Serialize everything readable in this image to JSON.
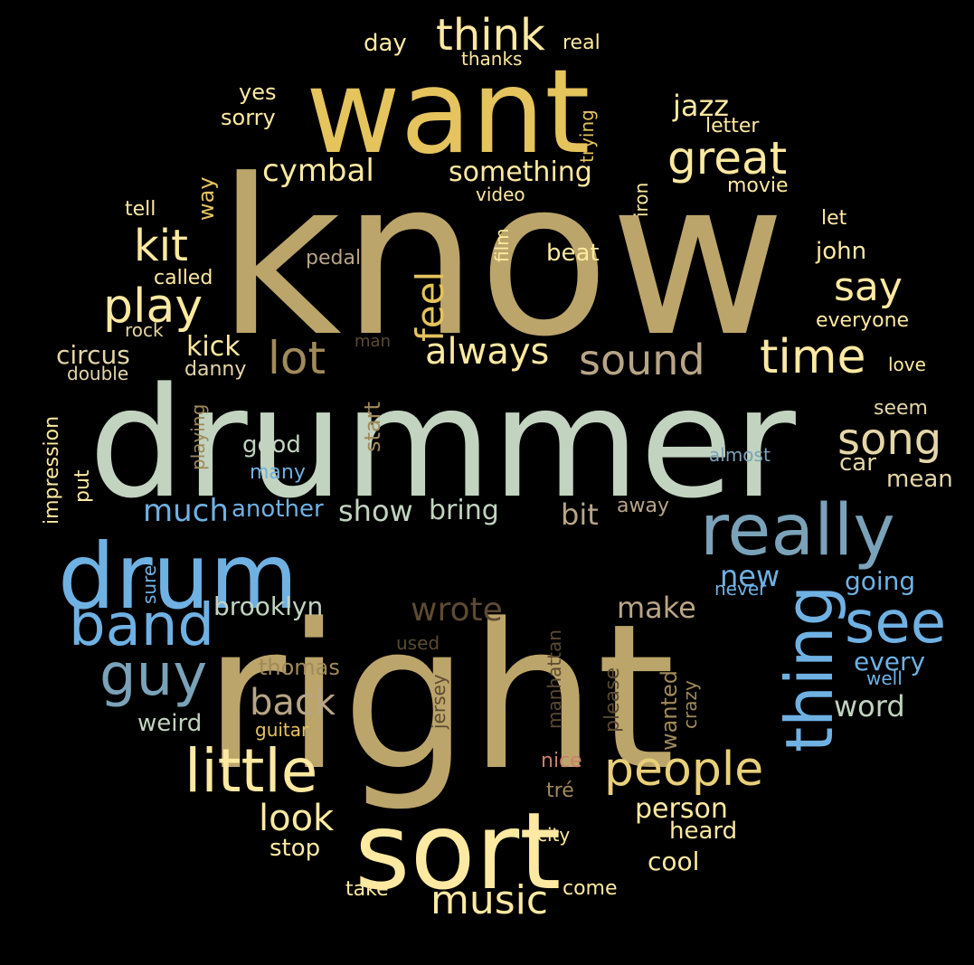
{
  "colors": {
    "background": "#000000",
    "khaki": "#bca56a",
    "gold": "#e5c35d",
    "cream": "#fde9a1",
    "sage": "#c2d3c0",
    "sky": "#6fb1e3",
    "steel": "#7aa2b8",
    "brown": "#5c4a32",
    "tan": "#b8a586",
    "salmon": "#c9806a"
  },
  "words": {
    "know": "know",
    "right": "right",
    "drummer": "drummer",
    "want": "want",
    "sort": "sort",
    "drum": "drum",
    "really": "really",
    "little": "little",
    "thing": "thing",
    "band": "band",
    "guy": "guy",
    "see": "see",
    "people": "people",
    "great": "great",
    "think": "think",
    "play": "play",
    "time": "time",
    "lot": "lot",
    "song": "song",
    "sound": "sound",
    "kit": "kit",
    "music": "music",
    "always": "always",
    "feel": "feel",
    "say": "say",
    "back": "back",
    "look": "look",
    "wrote": "wrote",
    "much": "much",
    "new": "new",
    "make": "make",
    "cymbal": "cymbal",
    "something": "something",
    "kick": "kick",
    "show": "show",
    "bring": "bring",
    "jazz": "jazz",
    "bit": "bit",
    "word": "word",
    "person": "person",
    "brooklyn": "brooklyn",
    "going": "going",
    "every": "every",
    "good": "good",
    "another": "another",
    "cool": "cool",
    "heard": "heard",
    "circus": "circus",
    "car": "car",
    "mean": "mean",
    "stop": "stop",
    "thomas": "thomas",
    "weird": "weird",
    "beat": "beat",
    "say2": "",
    "john": "john",
    "day": "day",
    "yes": "yes",
    "sorry": "sorry",
    "real": "real",
    "thanks": "thanks",
    "letter": "letter",
    "movie": "movie",
    "video": "video",
    "tell": "tell",
    "let": "let",
    "pedal": "pedal",
    "called": "called",
    "rock": "rock",
    "everyone": "everyone",
    "man": "man",
    "double": "double",
    "danny": "danny",
    "love": "love",
    "seem": "seem",
    "almost": "almost",
    "many": "many",
    "away": "away",
    "never": "never",
    "well": "well",
    "used": "used",
    "guitar": "guitar",
    "nice": "nice",
    "tre": "tré",
    "city": "city",
    "take": "take",
    "come": "come",
    "way": "way",
    "trying": "trying",
    "iron": "iron",
    "film": "film",
    "start": "start",
    "playing": "playing",
    "impression": "impression",
    "put": "put",
    "sure": "sure",
    "jersey": "jersey",
    "manhattan": "manhattan",
    "please": "please",
    "wanted": "wanted",
    "crazy": "crazy"
  }
}
